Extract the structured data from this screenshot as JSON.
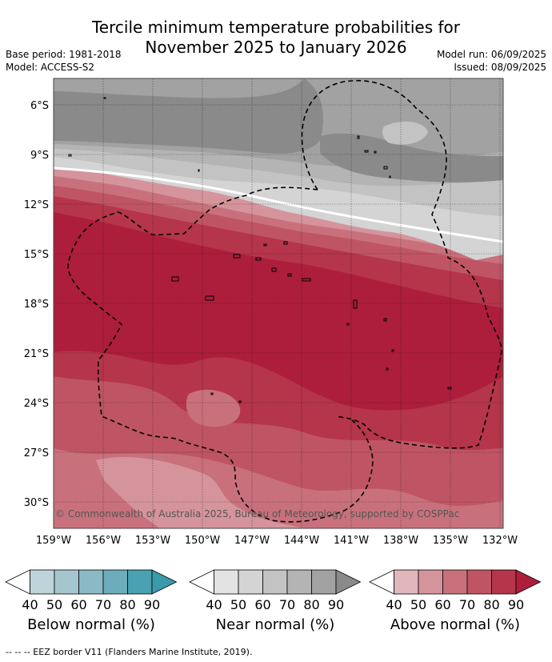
{
  "title": {
    "line1": "Tercile minimum temperature probabilities for",
    "line2": "November 2025 to January 2026"
  },
  "meta": {
    "base_period": "Base period: 1981-2018",
    "model": "Model: ACCESS-S2",
    "model_run": "Model run: 06/09/2025",
    "issued": "Issued: 08/09/2025"
  },
  "map": {
    "lat_labels": [
      "6°S",
      "9°S",
      "12°S",
      "15°S",
      "18°S",
      "21°S",
      "24°S",
      "27°S",
      "30°S"
    ],
    "lon_labels": [
      "159°W",
      "156°W",
      "153°W",
      "150°W",
      "147°W",
      "144°W",
      "141°W",
      "138°W",
      "135°W",
      "132°W"
    ],
    "copyright": "© Commonwealth of Australia 2025, Bureau of Meteorology, supported by COSPPac",
    "grid": true
  },
  "colorbars": [
    {
      "label": "Below normal (%)",
      "ticks": [
        "40",
        "50",
        "60",
        "70",
        "80",
        "90"
      ],
      "colors": [
        "#ffffff",
        "#bfd3da",
        "#a6c6cf",
        "#8bb9c5",
        "#6cacbb",
        "#4aa1b1",
        "#3a9aab"
      ]
    },
    {
      "label": "Near normal (%)",
      "ticks": [
        "40",
        "50",
        "60",
        "70",
        "80",
        "90"
      ],
      "colors": [
        "#ffffff",
        "#e3e3e3",
        "#d4d4d4",
        "#c3c3c3",
        "#b4b4b4",
        "#a2a2a2",
        "#8a8a8a"
      ]
    },
    {
      "label": "Above normal (%)",
      "ticks": [
        "40",
        "50",
        "60",
        "70",
        "80",
        "90"
      ],
      "colors": [
        "#ffffff",
        "#e1b6bc",
        "#d5949c",
        "#c8717c",
        "#bf5564",
        "#b5354a",
        "#ad1e3c"
      ]
    }
  ],
  "footer": "--  --  -- EEZ border V11 (Flanders Marine Institute, 2019)."
}
